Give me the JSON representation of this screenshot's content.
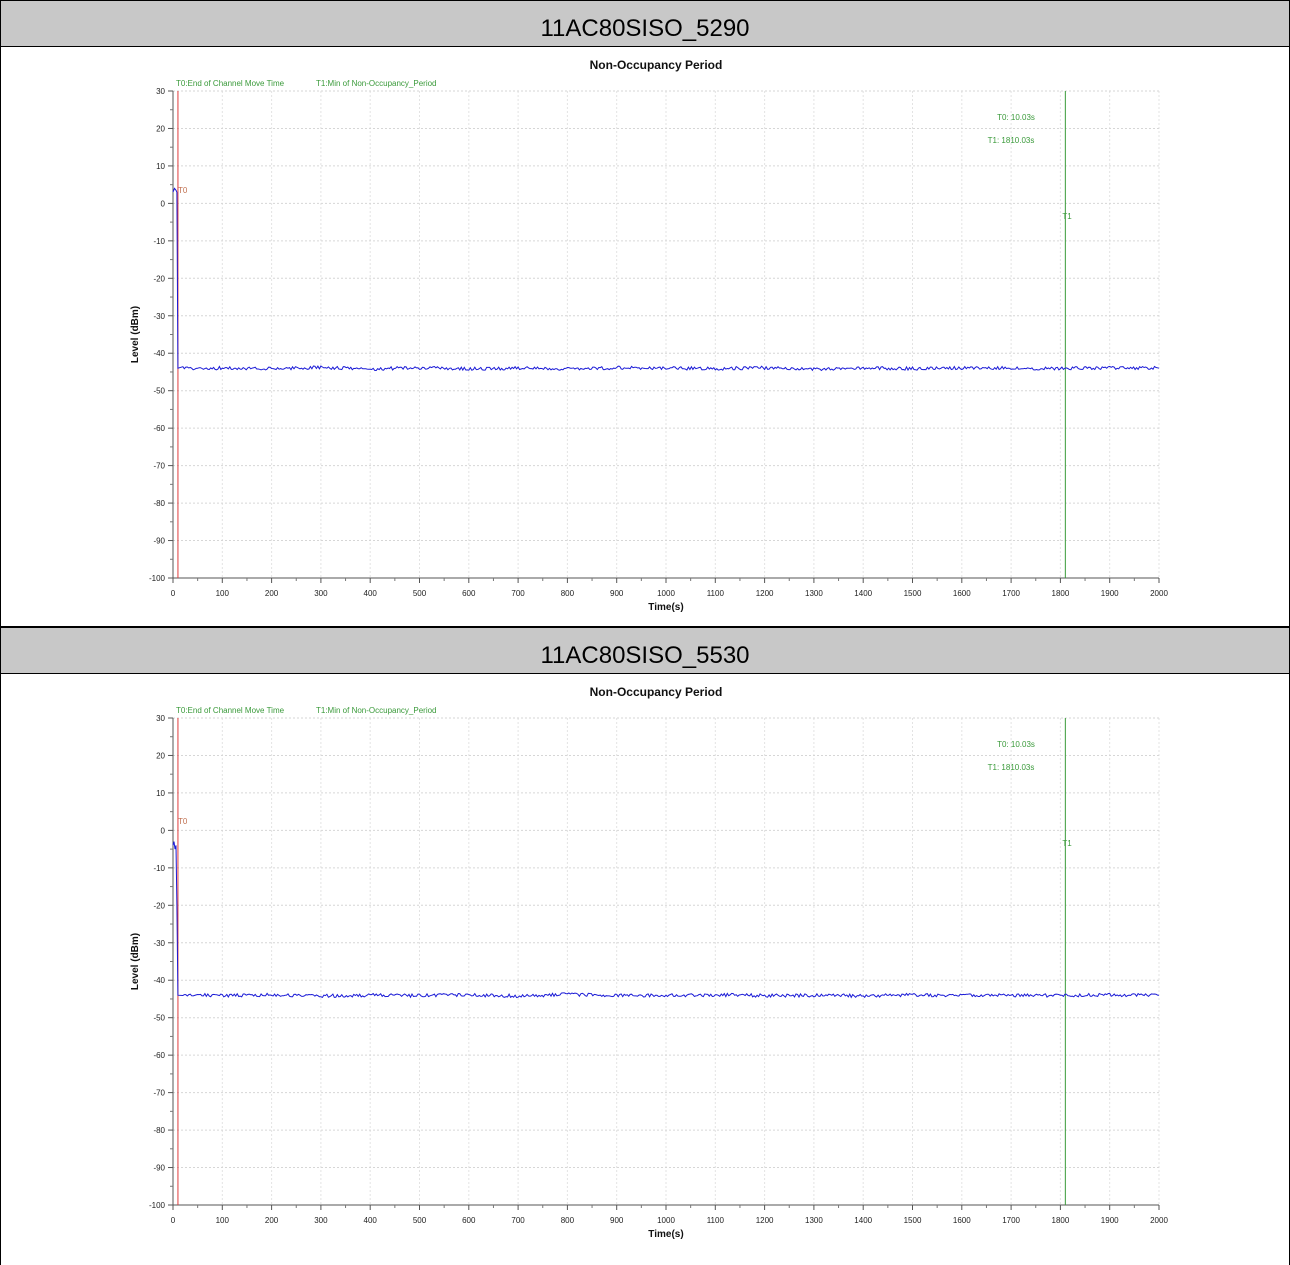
{
  "sections": [
    {
      "header": "11AC80SISO_5290"
    },
    {
      "header": "11AC80SISO_5530"
    }
  ],
  "chart_data": [
    {
      "type": "line",
      "title": "Non-Occupancy Period",
      "xlabel": "Time(s)",
      "ylabel": "Level (dBm)",
      "xlim": [
        0,
        2000
      ],
      "ylim": [
        -100,
        30
      ],
      "xticks": [
        "0",
        "100",
        "200",
        "300",
        "400",
        "500",
        "600",
        "700",
        "800",
        "900",
        "1000",
        "1100",
        "1200",
        "1300",
        "1400",
        "1500",
        "1600",
        "1700",
        "1800",
        "1900",
        "2000"
      ],
      "yticks": [
        "30",
        "20",
        "10",
        "0",
        "-10",
        "-20",
        "-30",
        "-40",
        "-50",
        "-60",
        "-70",
        "-80",
        "-90",
        "-100"
      ],
      "grid": true,
      "legend": [
        "T0:End of Channel Move Time",
        "T1:Min of Non-Occupancy_Period"
      ],
      "markers": [
        {
          "name": "T0",
          "x": 10.03,
          "color": "#e03c3c"
        },
        {
          "name": "T1",
          "x": 1810.03,
          "color": "#3a9a3a"
        }
      ],
      "marker_readout": [
        "T0: 10.03s",
        "T1: 1810.03s"
      ],
      "series": [
        {
          "color": "#1a1ad6",
          "points": [
            [
              0,
              3
            ],
            [
              3,
              4
            ],
            [
              6,
              3.5
            ],
            [
              8,
              3
            ],
            [
              10,
              -44
            ],
            [
              20,
              -43.8
            ],
            [
              50,
              -44.2
            ],
            [
              100,
              -43.9
            ],
            [
              200,
              -44.1
            ],
            [
              300,
              -43.8
            ],
            [
              400,
              -44.2
            ],
            [
              500,
              -43.9
            ],
            [
              600,
              -44.1
            ],
            [
              700,
              -44
            ],
            [
              800,
              -44.2
            ],
            [
              900,
              -43.9
            ],
            [
              1000,
              -44
            ],
            [
              1100,
              -44.1
            ],
            [
              1200,
              -43.9
            ],
            [
              1300,
              -44.2
            ],
            [
              1400,
              -44
            ],
            [
              1500,
              -44.1
            ],
            [
              1600,
              -43.9
            ],
            [
              1700,
              -44
            ],
            [
              1800,
              -44.1
            ],
            [
              1900,
              -43.9
            ],
            [
              2000,
              -44
            ]
          ]
        }
      ]
    },
    {
      "type": "line",
      "title": "Non-Occupancy Period",
      "xlabel": "Time(s)",
      "ylabel": "Level (dBm)",
      "xlim": [
        0,
        2000
      ],
      "ylim": [
        -100,
        30
      ],
      "xticks": [
        "0",
        "100",
        "200",
        "300",
        "400",
        "500",
        "600",
        "700",
        "800",
        "900",
        "1000",
        "1100",
        "1200",
        "1300",
        "1400",
        "1500",
        "1600",
        "1700",
        "1800",
        "1900",
        "2000"
      ],
      "yticks": [
        "30",
        "20",
        "10",
        "0",
        "-10",
        "-20",
        "-30",
        "-40",
        "-50",
        "-60",
        "-70",
        "-80",
        "-90",
        "-100"
      ],
      "grid": true,
      "legend": [
        "T0:End of Channel Move Time",
        "T1:Min of Non-Occupancy_Period"
      ],
      "markers": [
        {
          "name": "T0",
          "x": 10.03,
          "color": "#e03c3c"
        },
        {
          "name": "T1",
          "x": 1810.03,
          "color": "#3a9a3a"
        }
      ],
      "marker_readout": [
        "T0: 10.03s",
        "T1: 1810.03s"
      ],
      "series": [
        {
          "color": "#1a1ad6",
          "points": [
            [
              0,
              -4
            ],
            [
              2,
              -3
            ],
            [
              4,
              -5
            ],
            [
              6,
              -4
            ],
            [
              8,
              -20
            ],
            [
              10,
              -44
            ],
            [
              20,
              -44.2
            ],
            [
              50,
              -43.9
            ],
            [
              100,
              -44.1
            ],
            [
              200,
              -43.9
            ],
            [
              300,
              -44.2
            ],
            [
              400,
              -44
            ],
            [
              500,
              -44.1
            ],
            [
              600,
              -43.9
            ],
            [
              700,
              -44.2
            ],
            [
              800,
              -43.8
            ],
            [
              900,
              -44.1
            ],
            [
              1000,
              -44
            ],
            [
              1100,
              -43.9
            ],
            [
              1200,
              -44.1
            ],
            [
              1300,
              -44
            ],
            [
              1400,
              -44.2
            ],
            [
              1500,
              -43.9
            ],
            [
              1600,
              -44.1
            ],
            [
              1700,
              -44
            ],
            [
              1800,
              -44.1
            ],
            [
              1900,
              -43.9
            ],
            [
              2000,
              -44
            ]
          ]
        }
      ]
    }
  ]
}
